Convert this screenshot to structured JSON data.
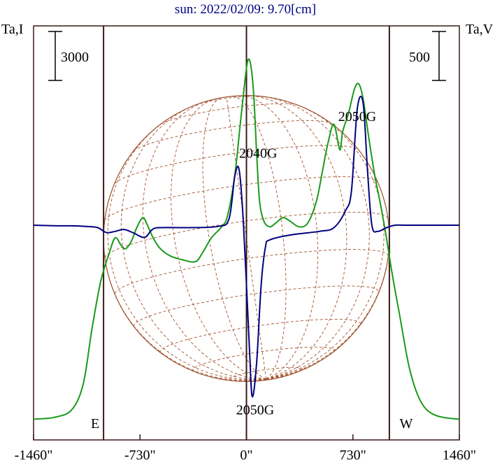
{
  "chart_data": {
    "type": "line",
    "title": "sun: 2022/02/09: 9.70[cm]",
    "left_axis_label": "Ta,I",
    "right_axis_label": "Ta,V",
    "x_tick_labels": [
      "-1460\"",
      "-730\"",
      "0\"",
      "730\"",
      "1460\""
    ],
    "x_ticks": [
      -1460,
      -730,
      0,
      730,
      1460
    ],
    "xlim": [
      -1460,
      1460
    ],
    "scale_bar_left": "3000",
    "scale_bar_right": "500",
    "limb_labels": [
      "E",
      "W"
    ],
    "limb_positions": [
      -980,
      980
    ],
    "disk_radius": 980,
    "annotations": [
      {
        "text": "2040G",
        "x": 80,
        "y_frac": 0.73
      },
      {
        "text": "2050G",
        "x": 760,
        "y_frac": 0.83
      },
      {
        "text": "2050G",
        "x": 60,
        "y_frac": 0.03
      }
    ],
    "colors": {
      "stokes_i": "#1a9a1a",
      "stokes_v": "#000080",
      "disk_grid": "#a0522d",
      "frame": "#3a1a1a"
    },
    "series": [
      {
        "name": "I",
        "points": [
          [
            -1460,
            0.005
          ],
          [
            -1320,
            0.01
          ],
          [
            -1200,
            0.03
          ],
          [
            -1120,
            0.1
          ],
          [
            -1060,
            0.25
          ],
          [
            -1000,
            0.38
          ],
          [
            -940,
            0.46
          ],
          [
            -900,
            0.5
          ],
          [
            -860,
            0.48
          ],
          [
            -830,
            0.47
          ],
          [
            -790,
            0.49
          ],
          [
            -750,
            0.53
          ],
          [
            -710,
            0.555
          ],
          [
            -680,
            0.535
          ],
          [
            -640,
            0.5
          ],
          [
            -590,
            0.47
          ],
          [
            -520,
            0.45
          ],
          [
            -440,
            0.44
          ],
          [
            -350,
            0.435
          ],
          [
            -300,
            0.46
          ],
          [
            -240,
            0.5
          ],
          [
            -170,
            0.53
          ],
          [
            -130,
            0.56
          ],
          [
            -80,
            0.67
          ],
          [
            -40,
            0.82
          ],
          [
            -10,
            0.93
          ],
          [
            10,
            0.985
          ],
          [
            30,
            0.97
          ],
          [
            50,
            0.89
          ],
          [
            70,
            0.73
          ],
          [
            90,
            0.6
          ],
          [
            120,
            0.545
          ],
          [
            160,
            0.53
          ],
          [
            200,
            0.54
          ],
          [
            250,
            0.555
          ],
          [
            300,
            0.545
          ],
          [
            360,
            0.53
          ],
          [
            420,
            0.54
          ],
          [
            480,
            0.6
          ],
          [
            520,
            0.68
          ],
          [
            560,
            0.76
          ],
          [
            600,
            0.81
          ],
          [
            640,
            0.74
          ],
          [
            660,
            0.79
          ],
          [
            700,
            0.84
          ],
          [
            740,
            0.905
          ],
          [
            770,
            0.92
          ],
          [
            800,
            0.88
          ],
          [
            840,
            0.77
          ],
          [
            880,
            0.67
          ],
          [
            920,
            0.59
          ],
          [
            960,
            0.5
          ],
          [
            1000,
            0.4
          ],
          [
            1050,
            0.29
          ],
          [
            1120,
            0.14
          ],
          [
            1200,
            0.05
          ],
          [
            1300,
            0.015
          ],
          [
            1460,
            0.005
          ]
        ]
      },
      {
        "name": "V",
        "points": [
          [
            -1460,
            0.0
          ],
          [
            -1300,
            -0.005
          ],
          [
            -1200,
            -0.005
          ],
          [
            -1100,
            -0.01
          ],
          [
            -1020,
            -0.02
          ],
          [
            -960,
            -0.06
          ],
          [
            -900,
            -0.05
          ],
          [
            -840,
            -0.035
          ],
          [
            -780,
            -0.06
          ],
          [
            -700,
            -0.1
          ],
          [
            -650,
            -0.04
          ],
          [
            -600,
            -0.02
          ],
          [
            -400,
            -0.02
          ],
          [
            -200,
            -0.01
          ],
          [
            -120,
            0.05
          ],
          [
            -80,
            0.4
          ],
          [
            -50,
            0.45
          ],
          [
            -20,
            0.0
          ],
          [
            20,
            -1.0
          ],
          [
            40,
            -1.4
          ],
          [
            70,
            -1.12
          ],
          [
            100,
            -0.5
          ],
          [
            130,
            -0.18
          ],
          [
            160,
            -0.12
          ],
          [
            300,
            -0.08
          ],
          [
            500,
            -0.05
          ],
          [
            600,
            -0.02
          ],
          [
            680,
            0.12
          ],
          [
            720,
            0.28
          ],
          [
            760,
            0.95
          ],
          [
            800,
            1.0
          ],
          [
            830,
            0.45
          ],
          [
            860,
            0.0
          ],
          [
            900,
            -0.05
          ],
          [
            960,
            -0.02
          ],
          [
            1020,
            0.0
          ],
          [
            1100,
            0.0
          ],
          [
            1460,
            0.0
          ]
        ]
      }
    ]
  }
}
